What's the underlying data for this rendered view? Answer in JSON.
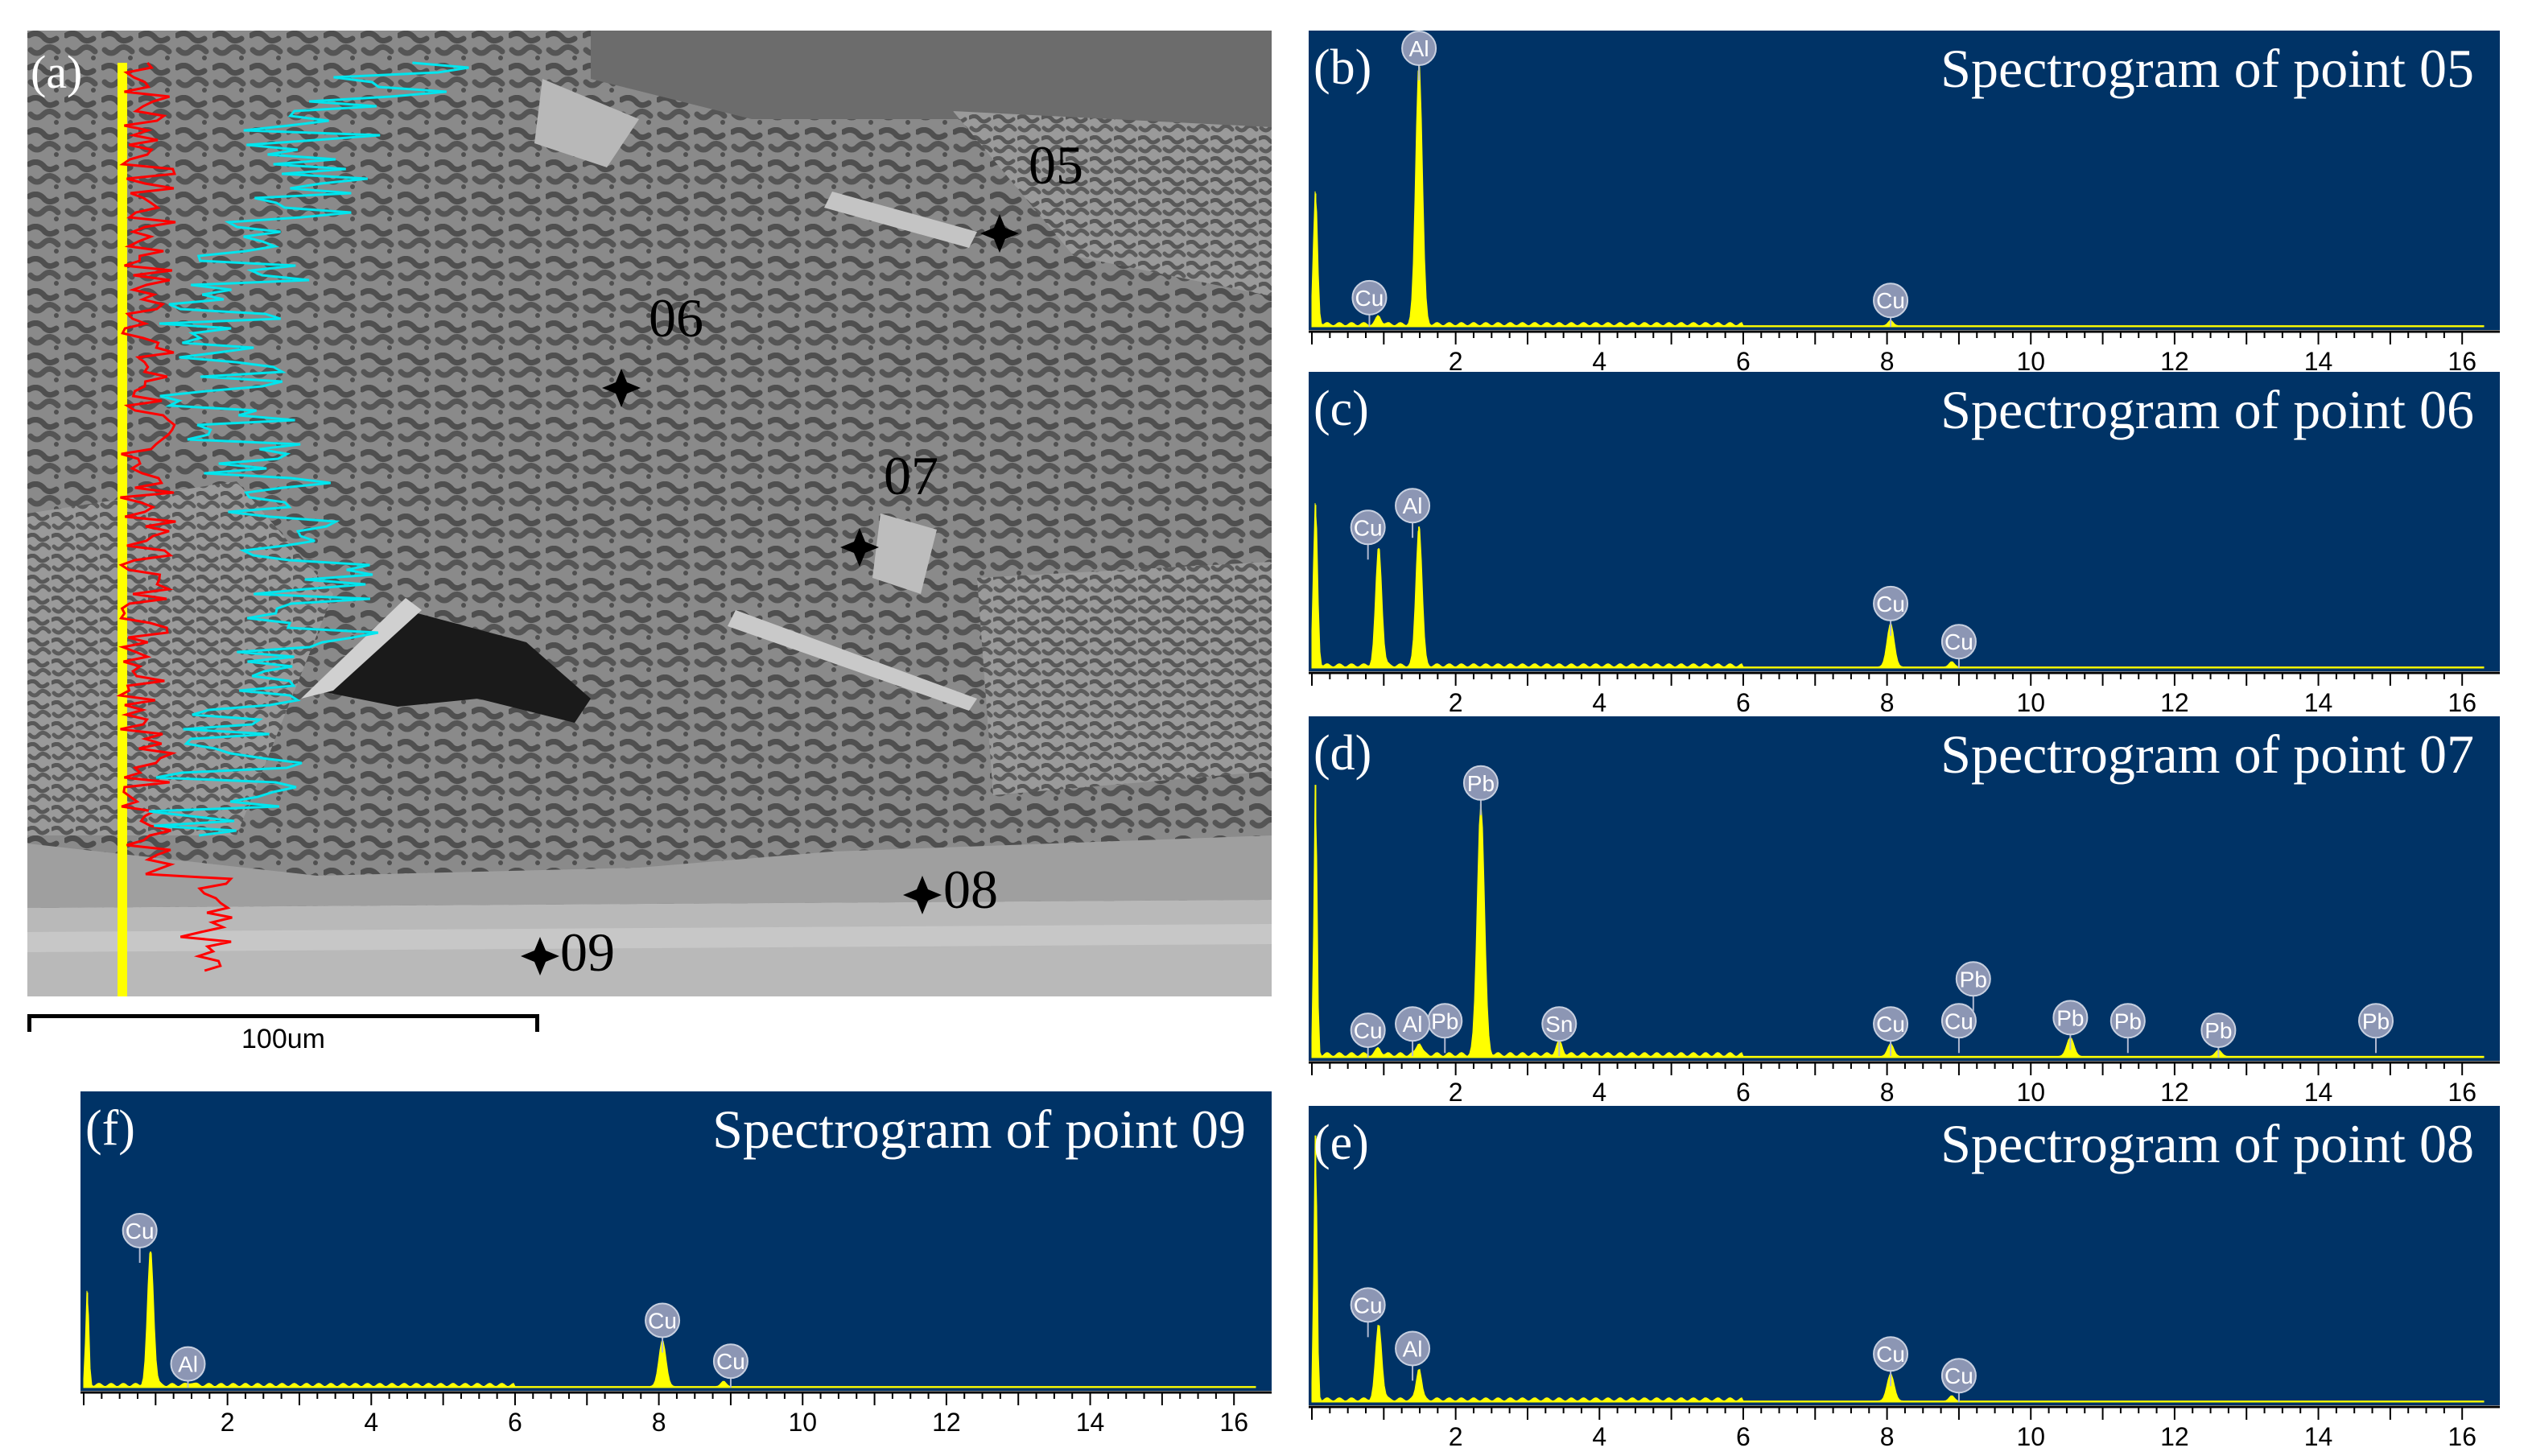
{
  "sem": {
    "panel_label": "(a)",
    "scale_bar_label": "100um",
    "points": [
      "05",
      "06",
      "07",
      "08",
      "09"
    ]
  },
  "colors": {
    "spectrum_background": "#003366",
    "peak_fill": "#ffff00",
    "bubble_fill": "#8c96b4",
    "linescan_red": "#ff0000",
    "linescan_cyan": "#00e5ee",
    "linescan_yellow": "#ffff00"
  },
  "chart_data": [
    {
      "type": "area",
      "panel": "(b)",
      "title": "Spectrogram of point 05",
      "xlabel": "",
      "xlim": [
        0,
        16.3
      ],
      "x_ticks": [
        2,
        4,
        6,
        8,
        10,
        12,
        14,
        16
      ],
      "peaks": [
        {
          "x": 0.05,
          "height": 0.49,
          "width": 0.08
        },
        {
          "x": 0.93,
          "height": 0.03,
          "width": 0.1
        },
        {
          "x": 1.49,
          "height": 0.97,
          "width": 0.13
        },
        {
          "x": 8.05,
          "height": 0.02,
          "width": 0.1
        }
      ],
      "element_labels": [
        {
          "text": "Al",
          "x": 1.49
        },
        {
          "text": "Cu",
          "x": 0.8
        },
        {
          "text": "Cu",
          "x": 8.05
        }
      ]
    },
    {
      "type": "area",
      "panel": "(c)",
      "title": "Spectrogram of point 06",
      "xlabel": "",
      "xlim": [
        0,
        16.3
      ],
      "x_ticks": [
        2,
        4,
        6,
        8,
        10,
        12,
        14,
        16
      ],
      "peaks": [
        {
          "x": 0.05,
          "height": 0.6,
          "width": 0.08
        },
        {
          "x": 0.93,
          "height": 0.44,
          "width": 0.12
        },
        {
          "x": 1.49,
          "height": 0.52,
          "width": 0.12
        },
        {
          "x": 8.05,
          "height": 0.16,
          "width": 0.14
        },
        {
          "x": 8.9,
          "height": 0.02,
          "width": 0.1
        }
      ],
      "element_labels": [
        {
          "text": "Cu",
          "x": 0.78
        },
        {
          "text": "Al",
          "x": 1.4
        },
        {
          "text": "Cu",
          "x": 8.05
        },
        {
          "text": "Cu",
          "x": 9.0
        }
      ]
    },
    {
      "type": "area",
      "panel": "(d)",
      "title": "Spectrogram of point 07",
      "xlabel": "",
      "xlim": [
        0,
        16.3
      ],
      "x_ticks": [
        2,
        4,
        6,
        8,
        10,
        12,
        14,
        16
      ],
      "peaks": [
        {
          "x": 0.05,
          "height": 0.86,
          "width": 0.06
        },
        {
          "x": 0.93,
          "height": 0.02,
          "width": 0.1
        },
        {
          "x": 1.49,
          "height": 0.04,
          "width": 0.1
        },
        {
          "x": 2.35,
          "height": 0.8,
          "width": 0.14
        },
        {
          "x": 3.44,
          "height": 0.04,
          "width": 0.12
        },
        {
          "x": 8.05,
          "height": 0.04,
          "width": 0.12
        },
        {
          "x": 10.55,
          "height": 0.06,
          "width": 0.14
        },
        {
          "x": 12.61,
          "height": 0.02,
          "width": 0.12
        }
      ],
      "element_labels": [
        {
          "text": "Pb",
          "x": 2.35
        },
        {
          "text": "Pb",
          "x": 1.85
        },
        {
          "text": "Al",
          "x": 1.4
        },
        {
          "text": "Cu",
          "x": 0.78
        },
        {
          "text": "Sn",
          "x": 3.44
        },
        {
          "text": "Cu",
          "x": 8.05
        },
        {
          "text": "Cu",
          "x": 9.0
        },
        {
          "text": "Pb",
          "x": 9.2
        },
        {
          "text": "Pb",
          "x": 10.55
        },
        {
          "text": "Pb",
          "x": 11.35
        },
        {
          "text": "Pb",
          "x": 12.61
        },
        {
          "text": "Pb",
          "x": 14.8
        }
      ]
    },
    {
      "type": "area",
      "panel": "(e)",
      "title": "Spectrogram of point 08",
      "xlabel": "",
      "xlim": [
        0,
        16.3
      ],
      "x_ticks": [
        2,
        4,
        6,
        8,
        10,
        12,
        14,
        16
      ],
      "peaks": [
        {
          "x": 0.05,
          "height": 0.98,
          "width": 0.06
        },
        {
          "x": 0.93,
          "height": 0.28,
          "width": 0.12
        },
        {
          "x": 1.49,
          "height": 0.12,
          "width": 0.1
        },
        {
          "x": 8.05,
          "height": 0.1,
          "width": 0.14
        },
        {
          "x": 8.9,
          "height": 0.02,
          "width": 0.1
        }
      ],
      "element_labels": [
        {
          "text": "Cu",
          "x": 0.78
        },
        {
          "text": "Al",
          "x": 1.4
        },
        {
          "text": "Cu",
          "x": 8.05
        },
        {
          "text": "Cu",
          "x": 9.0
        }
      ]
    },
    {
      "type": "area",
      "panel": "(f)",
      "title": "Spectrogram of point 09",
      "xlabel": "",
      "xlim": [
        0,
        16.3
      ],
      "x_ticks": [
        2,
        4,
        6,
        8,
        10,
        12,
        14,
        16
      ],
      "peaks": [
        {
          "x": 0.05,
          "height": 0.35,
          "width": 0.06
        },
        {
          "x": 0.93,
          "height": 0.5,
          "width": 0.12
        },
        {
          "x": 1.49,
          "height": 0.01,
          "width": 0.1
        },
        {
          "x": 8.05,
          "height": 0.17,
          "width": 0.14
        },
        {
          "x": 8.9,
          "height": 0.02,
          "width": 0.1
        }
      ],
      "element_labels": [
        {
          "text": "Cu",
          "x": 0.78
        },
        {
          "text": "Al",
          "x": 1.45
        },
        {
          "text": "Cu",
          "x": 8.05
        },
        {
          "text": "Cu",
          "x": 9.0
        }
      ]
    }
  ]
}
